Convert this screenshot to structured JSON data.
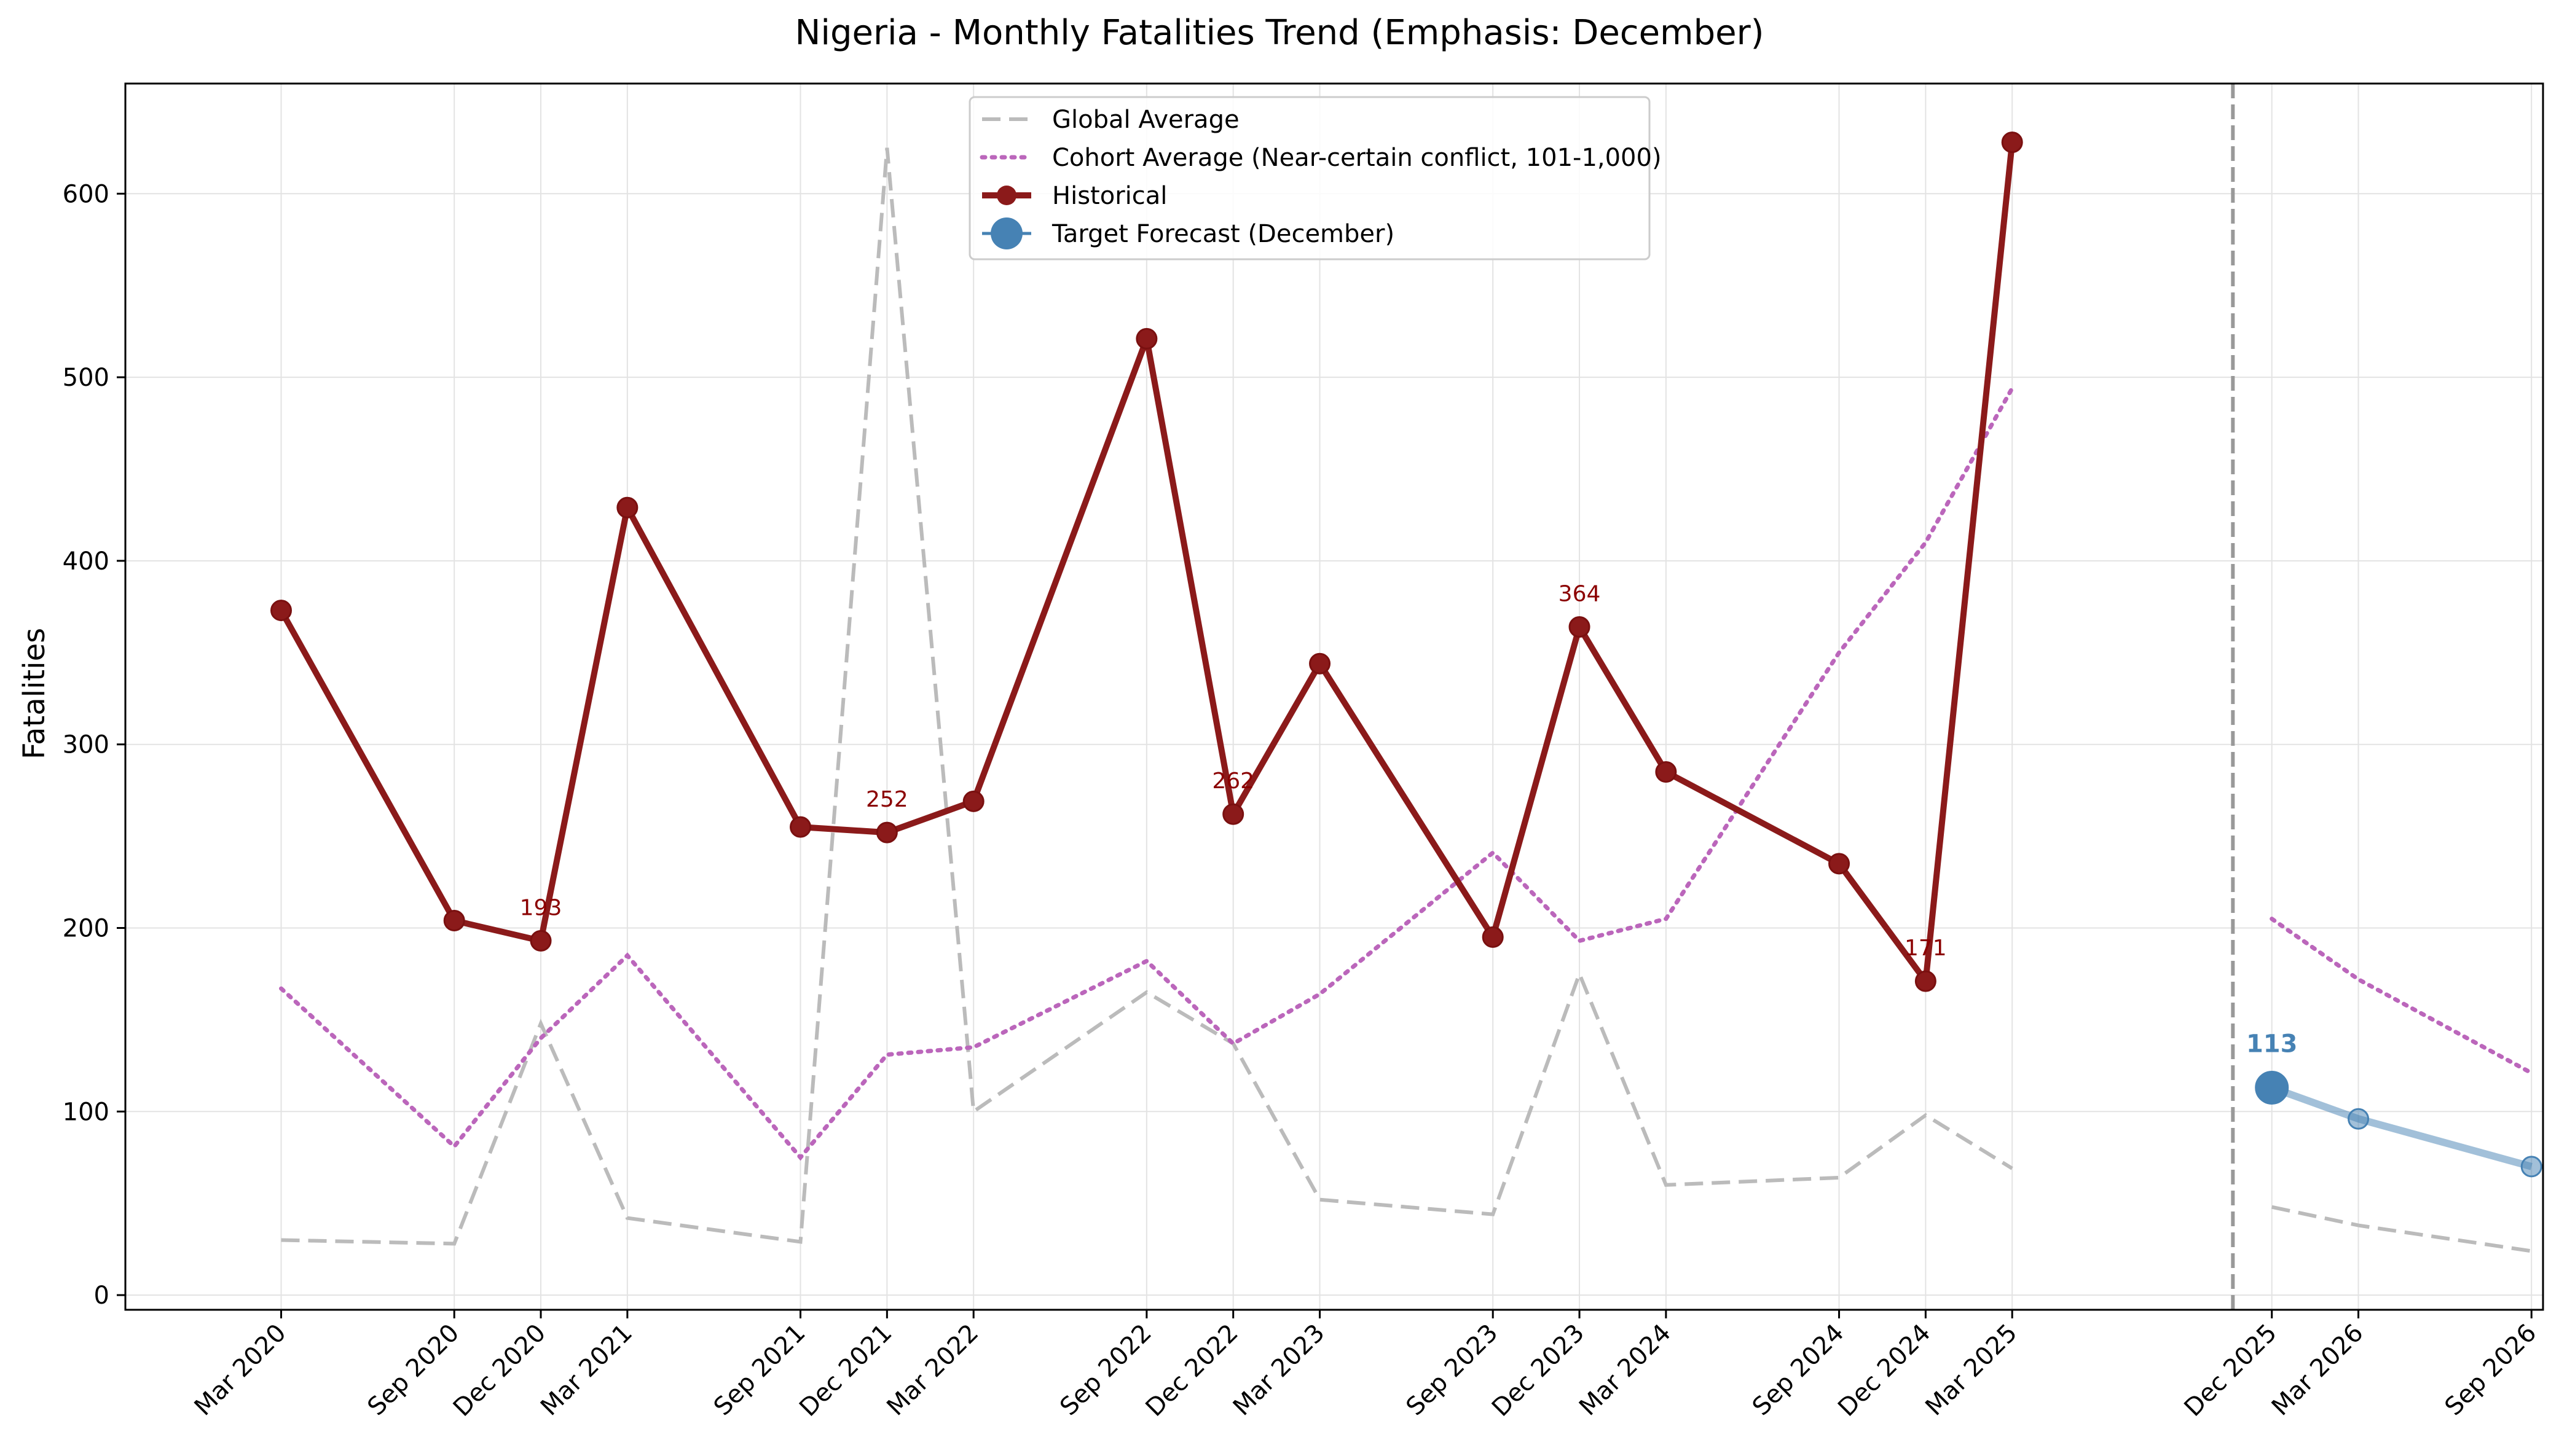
{
  "chart_data": {
    "type": "line",
    "title": "Nigeria - Monthly Fatalities Trend (Emphasis: December)",
    "ylabel": "Fatalities",
    "ylim": [
      -8,
      660
    ],
    "yticks": [
      0,
      100,
      200,
      300,
      400,
      500,
      600
    ],
    "grid": true,
    "legend_position": "top-center",
    "x_ticks": [
      "Mar 2020",
      "Sep 2020",
      "Dec 2020",
      "Mar 2021",
      "Sep 2021",
      "Dec 2021",
      "Mar 2022",
      "Sep 2022",
      "Dec 2022",
      "Mar 2023",
      "Sep 2023",
      "Dec 2023",
      "Mar 2024",
      "Sep 2024",
      "Dec 2024",
      "Mar 2025",
      "Dec 2025",
      "Mar 2026",
      "Sep 2026"
    ],
    "forecast_start": "Dec 2025",
    "series": [
      {
        "name": "Global Average",
        "color": "#bbbbbb",
        "style": "dashed",
        "segments": [
          {
            "x": [
              "Mar 2020",
              "Sep 2020",
              "Dec 2020",
              "Mar 2021",
              "Sep 2021",
              "Dec 2021",
              "Mar 2022",
              "Sep 2022",
              "Dec 2022",
              "Mar 2023",
              "Sep 2023",
              "Dec 2023",
              "Mar 2024",
              "Sep 2024",
              "Dec 2024",
              "Mar 2025"
            ],
            "y": [
              30,
              28,
              148,
              42,
              29,
              625,
              100,
              165,
              137,
              52,
              44,
              175,
              60,
              64,
              98,
              69
            ]
          },
          {
            "x": [
              "Dec 2025",
              "Mar 2026",
              "Sep 2026"
            ],
            "y": [
              48,
              38,
              24
            ]
          }
        ]
      },
      {
        "name": "Cohort Average (Near-certain conflict, 101-1,000)",
        "color": "#bb66bb",
        "style": "dotted",
        "segments": [
          {
            "x": [
              "Mar 2020",
              "Sep 2020",
              "Dec 2020",
              "Mar 2021",
              "Sep 2021",
              "Dec 2021",
              "Mar 2022",
              "Sep 2022",
              "Dec 2022",
              "Mar 2023",
              "Sep 2023",
              "Dec 2023",
              "Mar 2024",
              "Sep 2024",
              "Dec 2024",
              "Mar 2025"
            ],
            "y": [
              167,
              81,
              140,
              185,
              75,
              131,
              135,
              182,
              137,
              164,
              241,
              193,
              205,
              350,
              410,
              494
            ]
          },
          {
            "x": [
              "Dec 2025",
              "Mar 2026",
              "Sep 2026"
            ],
            "y": [
              205,
              172,
              121
            ]
          }
        ]
      },
      {
        "name": "Historical",
        "color": "#8b1a1a",
        "style": "solid-marker",
        "x": [
          "Mar 2020",
          "Sep 2020",
          "Dec 2020",
          "Mar 2021",
          "Sep 2021",
          "Dec 2021",
          "Mar 2022",
          "Sep 2022",
          "Dec 2022",
          "Mar 2023",
          "Sep 2023",
          "Dec 2023",
          "Mar 2024",
          "Sep 2024",
          "Dec 2024",
          "Mar 2025"
        ],
        "y": [
          373,
          204,
          193,
          429,
          255,
          252,
          269,
          521,
          262,
          344,
          195,
          364,
          285,
          235,
          171,
          628
        ]
      },
      {
        "name": "Target Forecast (December)",
        "color": "#4682b4",
        "style": "forecast",
        "x": [
          "Dec 2025",
          "Mar 2026",
          "Sep 2026"
        ],
        "y": [
          113,
          96,
          70
        ]
      }
    ],
    "annotations": [
      {
        "x": "Dec 2020",
        "y": 193,
        "text": "193",
        "series": "Historical"
      },
      {
        "x": "Dec 2021",
        "y": 252,
        "text": "252",
        "series": "Historical"
      },
      {
        "x": "Dec 2022",
        "y": 262,
        "text": "262",
        "series": "Historical"
      },
      {
        "x": "Dec 2023",
        "y": 364,
        "text": "364",
        "series": "Historical"
      },
      {
        "x": "Dec 2024",
        "y": 171,
        "text": "171",
        "series": "Historical"
      },
      {
        "x": "Dec 2025",
        "y": 113,
        "text": "113",
        "series": "Target Forecast (December)"
      }
    ]
  }
}
